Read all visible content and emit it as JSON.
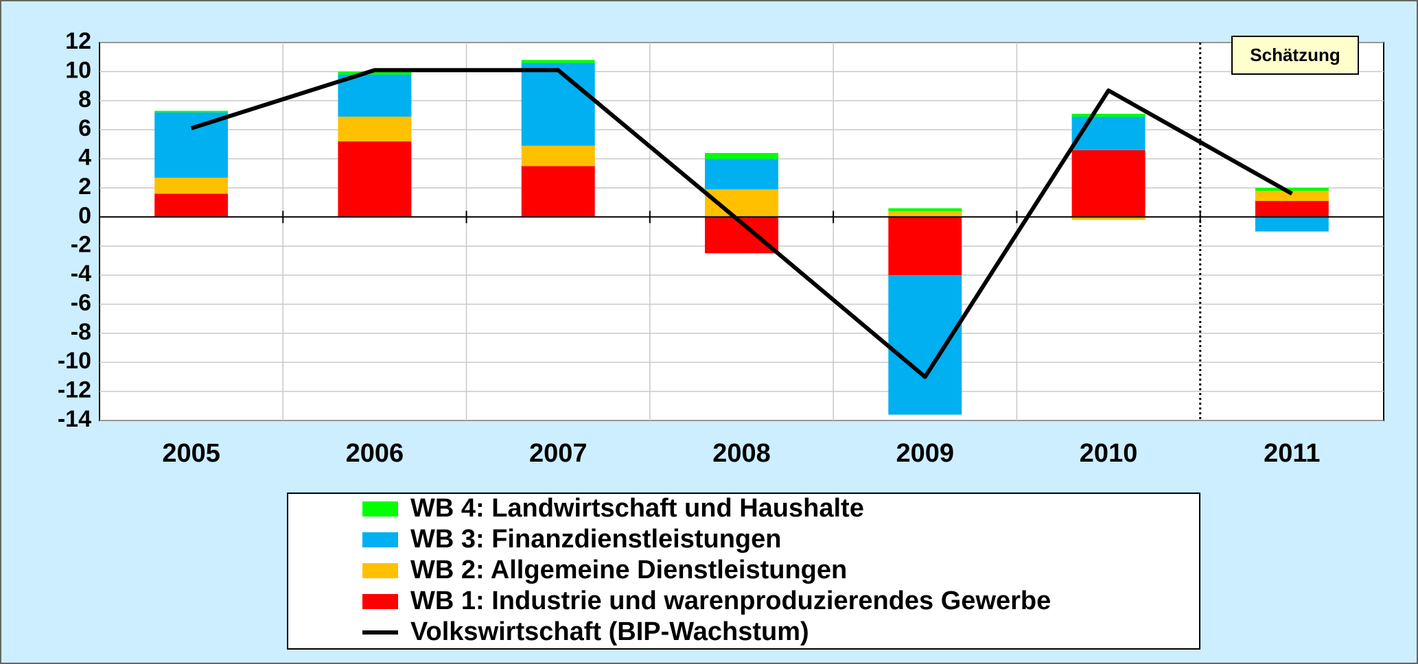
{
  "chart_data": {
    "type": "bar",
    "categories": [
      "2005",
      "2006",
      "2007",
      "2008",
      "2009",
      "2010",
      "2011"
    ],
    "series": [
      {
        "name": "WB 1: Industrie und warenproduzierendes Gewerbe",
        "color": "#ff0000",
        "type": "bar",
        "values": [
          1.6,
          5.2,
          3.5,
          -2.5,
          -4.0,
          4.6,
          1.1
        ]
      },
      {
        "name": "WB 2: Allgemeine Dienstleistungen",
        "color": "#ffc000",
        "type": "bar",
        "values": [
          1.1,
          1.7,
          1.4,
          1.9,
          0.4,
          -0.2,
          0.7
        ]
      },
      {
        "name": "WB 3: Finanzdienstleistungen",
        "color": "#00b0f0",
        "type": "bar",
        "values": [
          4.5,
          2.9,
          5.7,
          2.1,
          -9.6,
          2.3,
          -1.0
        ]
      },
      {
        "name": "WB 4: Landwirtschaft und Haushalte",
        "color": "#00ff00",
        "type": "bar",
        "values": [
          0.1,
          0.2,
          0.2,
          0.4,
          0.2,
          0.2,
          0.2
        ]
      },
      {
        "name": "Volkswirtschaft (BIP-Wachstum)",
        "color": "#000000",
        "type": "line",
        "values": [
          6.1,
          10.1,
          10.1,
          -0.4,
          -11.0,
          8.7,
          1.6
        ]
      }
    ],
    "annotation": "Schätzung",
    "ylim": [
      -14,
      12
    ],
    "yticks": [
      -14,
      -12,
      -10,
      -8,
      -6,
      -4,
      -2,
      0,
      2,
      4,
      6,
      8,
      10,
      12
    ],
    "grid": true,
    "legend": "bottom"
  }
}
